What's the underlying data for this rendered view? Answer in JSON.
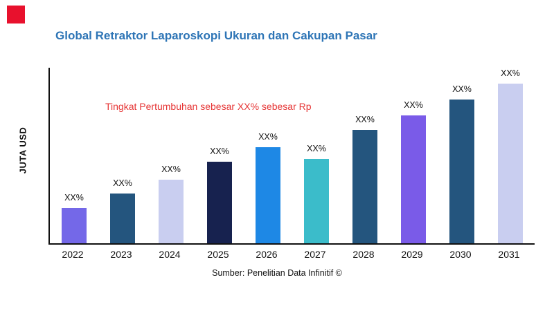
{
  "page": {
    "logo_color": "#e8112d"
  },
  "colors": {
    "title": "#2e75b6",
    "annotation": "#e63535",
    "axis": "#111111"
  },
  "chart_data": {
    "type": "bar",
    "title": "Global Retraktor Laparoskopi Ukuran dan Cakupan Pasar",
    "ylabel": "JUTA USD",
    "xlabel": "",
    "categories": [
      "2022",
      "2023",
      "2024",
      "2025",
      "2026",
      "2027",
      "2028",
      "2029",
      "2030",
      "2031"
    ],
    "values": [
      22,
      31,
      40,
      51,
      60,
      53,
      71,
      80,
      90,
      100
    ],
    "bar_labels": [
      "XX%",
      "XX%",
      "XX%",
      "XX%",
      "XX%",
      "XX%",
      "XX%",
      "XX%",
      "XX%",
      "XX%"
    ],
    "bar_colors": [
      "#7468e8",
      "#24557e",
      "#c9cef0",
      "#17224f",
      "#1e88e5",
      "#3bbcca",
      "#24557e",
      "#7a5be8",
      "#24557e",
      "#c9cef0"
    ],
    "ylim": [
      0,
      110
    ],
    "grid": false,
    "legend": false,
    "annotation": "Tingkat Pertumbuhan sebesar XX% sebesar Rp",
    "source": "Sumber: Penelitian Data Infinitif ©"
  }
}
